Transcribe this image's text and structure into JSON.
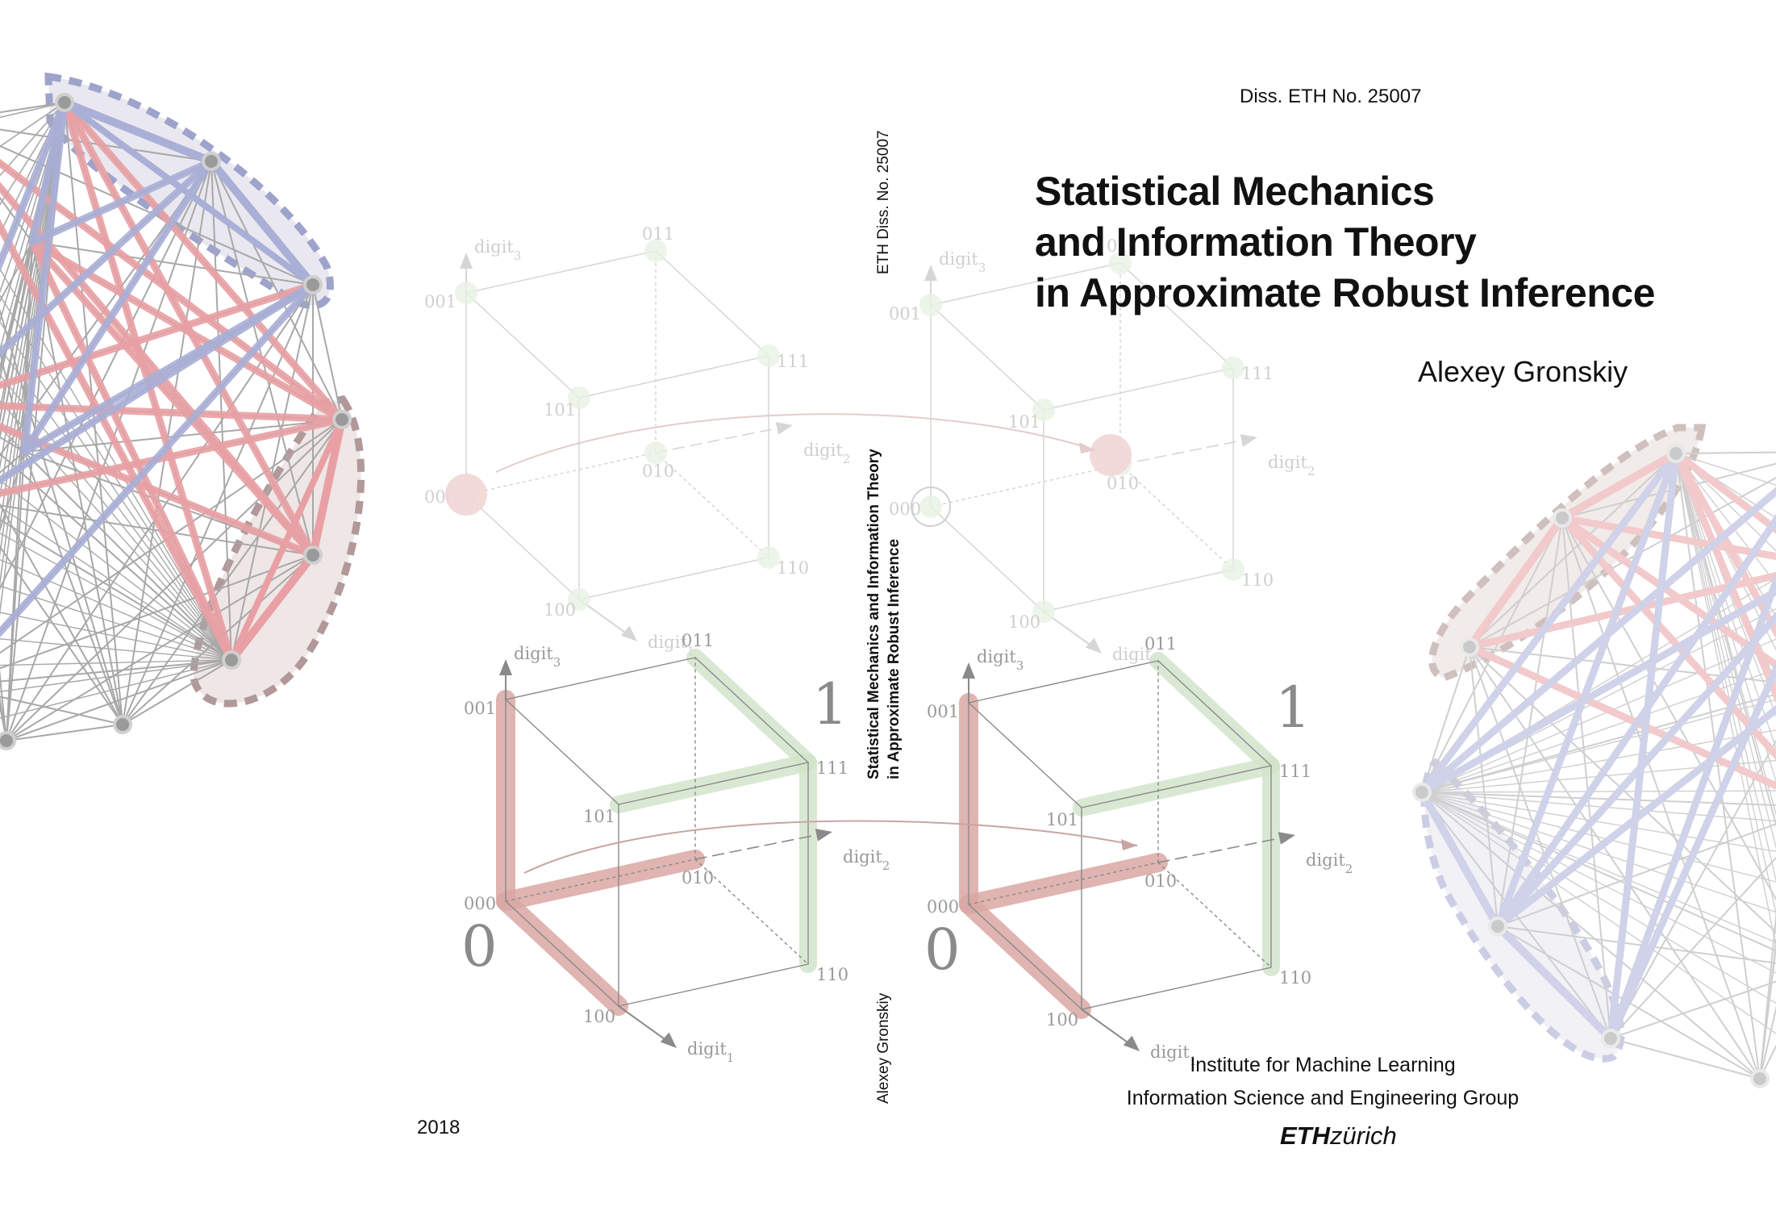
{
  "header": {
    "diss_number": "Diss. ETH No. 25007"
  },
  "title": {
    "lines": [
      "Statistical Mechanics",
      "and Information Theory",
      "in Approximate Robust Inference"
    ]
  },
  "author": "Alexey Gronskiy",
  "year": "2018",
  "institution": {
    "line1": "Institute for Machine Learning",
    "line2": "Information Science and Engineering Group",
    "logo_bold": "ETH",
    "logo_italic": "zürich"
  },
  "spine": {
    "diss_number": "ETH Diss. No. 25007",
    "title_line1": "Statistical Mechanics and Information Theory",
    "title_line2": "in Approximate Robust Inference",
    "author": "Alexey Gronskiy"
  },
  "cube_labels": {
    "v000": "000",
    "v001": "001",
    "v010": "010",
    "v011": "011",
    "v100": "100",
    "v101": "101",
    "v110": "110",
    "v111": "111",
    "axis1": "digit",
    "axis2": "digit",
    "axis3": "digit",
    "sub1": "1",
    "sub2": "2",
    "sub3": "3",
    "zero": "0",
    "one": "1"
  },
  "colors": {
    "red_edge": "#e8a0a4",
    "blue_edge": "#a9afd6",
    "gray_edge": "#a8a8a8",
    "green_path": "#cfe2c8",
    "red_path": "#d9a7a3"
  }
}
